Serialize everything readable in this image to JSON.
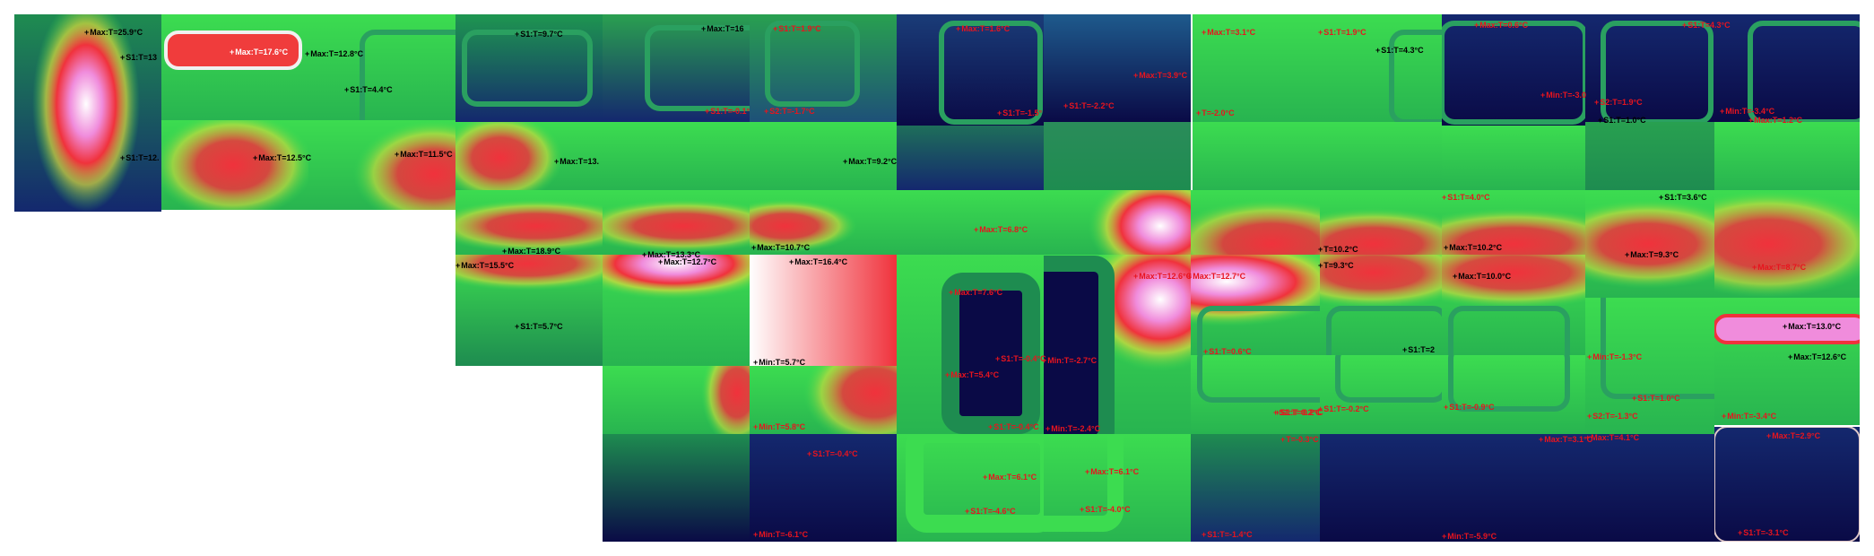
{
  "labels": [
    {
      "id": "t1a",
      "text": "Max:T=25.9°C",
      "color": "black"
    },
    {
      "id": "t1b",
      "text": "S1:T=13",
      "color": "black"
    },
    {
      "id": "t1c",
      "text": "S1:T=12.",
      "color": "black"
    },
    {
      "id": "t2a",
      "text": "Max:T=17.6°C",
      "color": "white"
    },
    {
      "id": "t2b",
      "text": "Max:T=12.5°C",
      "color": "black"
    },
    {
      "id": "t3a",
      "text": "Max:T=12.8°C",
      "color": "black"
    },
    {
      "id": "t3b",
      "text": "S1:T=4.4°C",
      "color": "black"
    },
    {
      "id": "t3c",
      "text": "Max:T=11.5°C",
      "color": "black"
    },
    {
      "id": "t4a",
      "text": "S1:T=9.7°C",
      "color": "black"
    },
    {
      "id": "t4b",
      "text": "Max:T=13.",
      "color": "black"
    },
    {
      "id": "t5a",
      "text": "Max:T=16",
      "color": "black"
    },
    {
      "id": "t6a",
      "text": "S1:T=1.9°C",
      "color": "red"
    },
    {
      "id": "t6b",
      "text": "S1:T=-0.1°",
      "color": "red"
    },
    {
      "id": "t6c",
      "text": "S2:T=-1.7°C",
      "color": "red"
    },
    {
      "id": "t6d",
      "text": "Max:T=9.2°C",
      "color": "black"
    },
    {
      "id": "t7a",
      "text": "Max:T=1.6°C",
      "color": "red"
    },
    {
      "id": "t7b",
      "text": "S1:T=-1.5°",
      "color": "red"
    },
    {
      "id": "t8a",
      "text": "S1:T=-2.2°C",
      "color": "red"
    },
    {
      "id": "t8b",
      "text": "Max:T=3.9°C",
      "color": "red"
    },
    {
      "id": "t9a",
      "text": "Max:T=3.1°C",
      "color": "red"
    },
    {
      "id": "t9b",
      "text": "T=-2.0°C",
      "color": "red"
    },
    {
      "id": "t10a",
      "text": "S1:T=1.9°C",
      "color": "red"
    },
    {
      "id": "t10b",
      "text": "S1:T=4.3°C",
      "color": "black"
    },
    {
      "id": "t11a",
      "text": "Max:T=0.6°C",
      "color": "red"
    },
    {
      "id": "t11b",
      "text": "Min:T=-3.0",
      "color": "red"
    },
    {
      "id": "t11c",
      "text": "S1:T=4.0°C",
      "color": "red"
    },
    {
      "id": "t12a",
      "text": "S2:T=1.9°C",
      "color": "red"
    },
    {
      "id": "t12b",
      "text": "S1:T=1.0°C",
      "color": "black"
    },
    {
      "id": "t12c",
      "text": "S1:T=3.6°C",
      "color": "black"
    },
    {
      "id": "t13a",
      "text": "S1:T=4.3°C",
      "color": "red"
    },
    {
      "id": "t13b",
      "text": "Min:T=-3.4°C",
      "color": "red"
    },
    {
      "id": "t13c",
      "text": "Max:T=1.2°C",
      "color": "red"
    },
    {
      "id": "r2a",
      "text": "Max:T=18.9°C",
      "color": "black"
    },
    {
      "id": "r2b",
      "text": "Max:T=15.5°C",
      "color": "black"
    },
    {
      "id": "r2c",
      "text": "S1:T=5.7°C",
      "color": "black"
    },
    {
      "id": "r2d",
      "text": "Max:T=13.3°C",
      "color": "black"
    },
    {
      "id": "r2e",
      "text": "Max:T=12.7°C",
      "color": "black"
    },
    {
      "id": "r2f",
      "text": "Max:T=10.7°C",
      "color": "black"
    },
    {
      "id": "r2g",
      "text": "Max:T=16.4°C",
      "color": "black"
    },
    {
      "id": "r2h",
      "text": "Min:T=5.7°C",
      "color": "black"
    },
    {
      "id": "r2i",
      "text": "Max:T=6.8°C",
      "color": "red"
    },
    {
      "id": "r2j",
      "text": "Max:T=7.6°C",
      "color": "red"
    },
    {
      "id": "r2k",
      "text": "S1:T=-0.4°C",
      "color": "red"
    },
    {
      "id": "r2l",
      "text": "Min:T=-2.7°C",
      "color": "red"
    },
    {
      "id": "r2m",
      "text": "Max:T=12.6°C",
      "color": "red"
    },
    {
      "id": "r2n",
      "text": "Max:T=12.7°C",
      "color": "red"
    },
    {
      "id": "r2o",
      "text": "T=10.2°C",
      "color": "black"
    },
    {
      "id": "r2p",
      "text": "T=9.3°C",
      "color": "black"
    },
    {
      "id": "r2q",
      "text": "Max:T=10.2°C",
      "color": "black"
    },
    {
      "id": "r2r",
      "text": "Max:T=10.0°C",
      "color": "black"
    },
    {
      "id": "r2s",
      "text": "Max:T=9.3°C",
      "color": "black"
    },
    {
      "id": "r2t",
      "text": "Max:T=8.7°C",
      "color": "red"
    },
    {
      "id": "r2u",
      "text": "Max:T=13.0°C",
      "color": "black"
    },
    {
      "id": "r2v",
      "text": "Max:T=12.6°C",
      "color": "black"
    },
    {
      "id": "r3a",
      "text": "S1:T=0.6°C",
      "color": "red"
    },
    {
      "id": "r3b",
      "text": "S1:T=2",
      "color": "black"
    },
    {
      "id": "r3c",
      "text": "S1:T=0.2°C",
      "color": "red"
    },
    {
      "id": "r3d",
      "text": "Max:T=5.4°C",
      "color": "red"
    },
    {
      "id": "r3e",
      "text": "Min:T=5.8°C",
      "color": "red"
    },
    {
      "id": "r3f",
      "text": "S1:T=-0.4°C",
      "color": "red"
    },
    {
      "id": "r3g",
      "text": "Min:T=-2.4°C",
      "color": "red"
    },
    {
      "id": "r3h",
      "text": "S1:T=0.2°C",
      "color": "red"
    },
    {
      "id": "r3i",
      "text": "S1:T=-0.2°C",
      "color": "red"
    },
    {
      "id": "r3j",
      "text": "S1:T=-0.9°C",
      "color": "red"
    },
    {
      "id": "r3k",
      "text": "Min:T=-1.3°C",
      "color": "red"
    },
    {
      "id": "r3l",
      "text": "S1:T=1.0°C",
      "color": "red"
    },
    {
      "id": "r3m",
      "text": "S2:T=-1.3°C",
      "color": "red"
    },
    {
      "id": "r3n",
      "text": "Min:T=-3.4°C",
      "color": "red"
    },
    {
      "id": "r4a",
      "text": "S1:T=-0.4°C",
      "color": "red"
    },
    {
      "id": "r4b",
      "text": "Min:T=-6.1°C",
      "color": "red"
    },
    {
      "id": "r4c",
      "text": "Max:T=6.1°C",
      "color": "red"
    },
    {
      "id": "r4d",
      "text": "S1:T=-4.6°C",
      "color": "red"
    },
    {
      "id": "r4e",
      "text": "Max:T=6.1°C",
      "color": "red"
    },
    {
      "id": "r4f",
      "text": "S1:T=-4.0°C",
      "color": "red"
    },
    {
      "id": "r4g",
      "text": "S1:T=-1.4°C",
      "color": "red"
    },
    {
      "id": "r4h",
      "text": "Min:T=-5.9°C",
      "color": "red"
    },
    {
      "id": "r4i",
      "text": "Max:T=3.1°C",
      "color": "red"
    },
    {
      "id": "r4j",
      "text": "Max:T=2.9°C",
      "color": "red"
    },
    {
      "id": "r4k",
      "text": "S1:T=-3.1°C",
      "color": "red"
    },
    {
      "id": "r4l",
      "text": "T=-0.3°C",
      "color": "red"
    },
    {
      "id": "r4m",
      "text": "Max:T=4.1°C",
      "color": "red"
    }
  ],
  "colors": {
    "white_hot": "#ffffff",
    "magenta": "#f08cdc",
    "red": "#f0323c",
    "yellow": "#dcdc3c",
    "green": "#3cdc50",
    "dark_green": "#1e8c50",
    "blue": "#14286e",
    "navy": "#0a0a46"
  }
}
